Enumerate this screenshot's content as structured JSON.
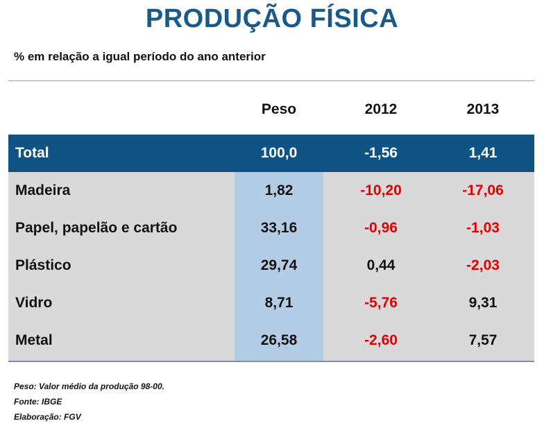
{
  "title": "PRODUÇÃO FÍSICA",
  "subtitle": "% em relação a igual período do ano anterior",
  "colors": {
    "title": "#1a5a8a",
    "total_row_bg": "#0f5385",
    "body_bg": "#d9d9d9",
    "peso_column_bg": "#b4cde6",
    "negative": "#e30000"
  },
  "chart_data": {
    "type": "table",
    "columns": [
      "",
      "Peso",
      "2012",
      "2013"
    ],
    "total": {
      "label": "Total",
      "peso": "100,0",
      "y2012": "-1,56",
      "y2013": "1,41"
    },
    "rows": [
      {
        "label": "Madeira",
        "peso": "1,82",
        "y2012": "-10,20",
        "y2013": "-17,06"
      },
      {
        "label": "Papel, papelão e cartão",
        "peso": "33,16",
        "y2012": "-0,96",
        "y2013": "-1,03"
      },
      {
        "label": "Plástico",
        "peso": "29,74",
        "y2012": "0,44",
        "y2013": "-2,03"
      },
      {
        "label": "Vidro",
        "peso": "8,71",
        "y2012": "-5,76",
        "y2013": "9,31"
      },
      {
        "label": "Metal",
        "peso": "26,58",
        "y2012": "-2,60",
        "y2013": "7,57"
      }
    ]
  },
  "notes": [
    "Peso: Valor médio da produção 98-00.",
    "Fonte: IBGE",
    "Elaboração: FGV"
  ]
}
